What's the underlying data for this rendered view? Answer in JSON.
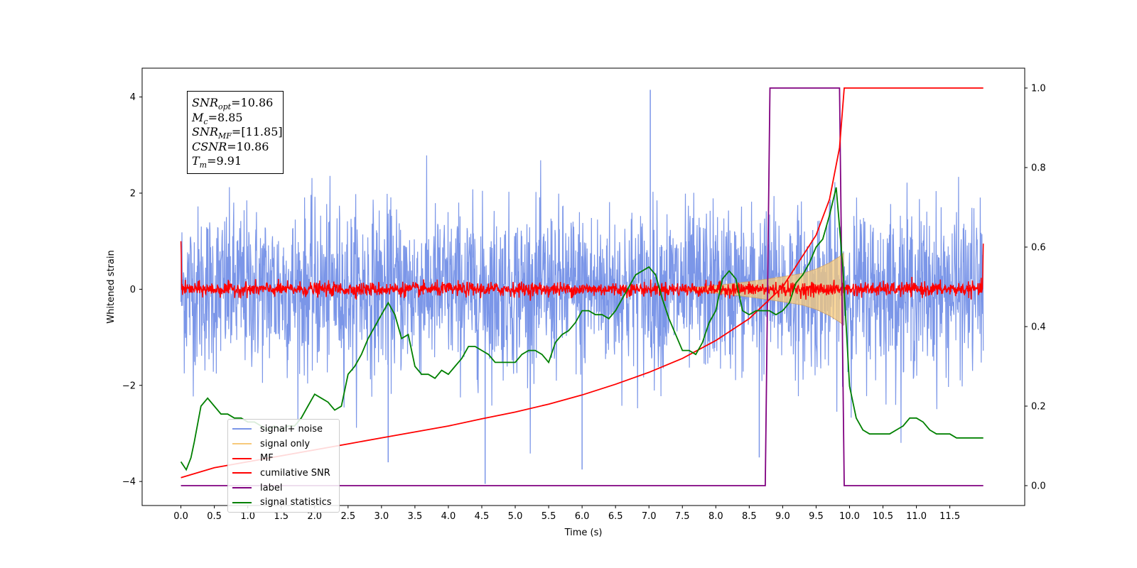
{
  "info_box": {
    "snr_opt": {
      "base": "SNR",
      "sub": "opt",
      "value": "=10.86"
    },
    "mc": {
      "base": "M",
      "sub": "c",
      "value": "=8.85"
    },
    "snr_mf": {
      "base": "SNR",
      "sub": "MF",
      "value": "=[11.85]"
    },
    "csnr": {
      "base": "CSNR",
      "value": "=10.86"
    },
    "tm": {
      "base": "T",
      "sub": "m",
      "value": "=9.91"
    }
  },
  "legend": [
    {
      "label": "signal+ noise",
      "color": "#7b96e8"
    },
    {
      "label": "signal only",
      "color": "#f7c97a"
    },
    {
      "label": "MF",
      "color": "#ff0000"
    },
    {
      "label": "cumilative SNR",
      "color": "#ff0000"
    },
    {
      "label": "label",
      "color": "#800080"
    },
    {
      "label": "signal statistics",
      "color": "#008000"
    }
  ],
  "chart_data": {
    "type": "line",
    "xlabel": "Time (s)",
    "ylabel": "Whitened strain",
    "xlim": [
      -0.58,
      12.62
    ],
    "ylim": [
      -4.5,
      4.6
    ],
    "y2lim": [
      -0.05,
      1.05
    ],
    "xticks": [
      "0.0",
      "0.5",
      "1.0",
      "1.5",
      "2.0",
      "2.5",
      "3.0",
      "3.5",
      "4.0",
      "4.5",
      "5.0",
      "5.5",
      "6.0",
      "6.5",
      "7.0",
      "7.5",
      "8.0",
      "8.5",
      "9.0",
      "9.5",
      "10.0",
      "10.5",
      "11.0",
      "11.5"
    ],
    "yticks": [
      "−4",
      "−2",
      "0",
      "2",
      "4"
    ],
    "y2ticks": [
      "0.0",
      "0.2",
      "0.4",
      "0.6",
      "0.8",
      "1.0"
    ],
    "grid": false,
    "legend_position": "lower-left",
    "series": [
      {
        "name": "signal+ noise",
        "axis": "left",
        "color": "#7b96e8",
        "x_range": [
          0,
          12
        ],
        "amplitude_rms": 0.85,
        "min": -4.05,
        "max": 4.15,
        "spikes": [
          [
            4.55,
            -4.05
          ],
          [
            7.02,
            4.15
          ],
          [
            6.0,
            -3.75
          ],
          [
            3.1,
            -3.6
          ],
          [
            8.65,
            -3.5
          ]
        ]
      },
      {
        "name": "signal only",
        "axis": "left",
        "color": "#f7c97a",
        "envelope": {
          "t": [
            7.5,
            8.0,
            8.5,
            9.0,
            9.3,
            9.5,
            9.7,
            9.85,
            9.91
          ],
          "amp": [
            0.02,
            0.08,
            0.16,
            0.26,
            0.33,
            0.42,
            0.55,
            0.68,
            0.75
          ]
        }
      },
      {
        "name": "MF",
        "axis": "left",
        "color": "#ff0000",
        "x_range": [
          0,
          12
        ],
        "noise_amplitude": 0.12,
        "edge_values": [
          1.0,
          0.95
        ]
      },
      {
        "name": "cumilative SNR",
        "axis": "right",
        "color": "#ff0000",
        "x": [
          0.0,
          0.5,
          1.0,
          1.5,
          2.0,
          2.5,
          3.0,
          3.5,
          4.0,
          4.5,
          5.0,
          5.5,
          6.0,
          6.5,
          7.0,
          7.5,
          8.0,
          8.5,
          9.0,
          9.5,
          9.7,
          9.85,
          9.92,
          10.5,
          11.0,
          11.5,
          12.0
        ],
        "y": [
          0.02,
          0.045,
          0.06,
          0.075,
          0.09,
          0.105,
          0.12,
          0.135,
          0.15,
          0.168,
          0.185,
          0.205,
          0.228,
          0.255,
          0.285,
          0.32,
          0.365,
          0.42,
          0.5,
          0.63,
          0.72,
          0.85,
          1.0,
          1.0,
          1.0,
          1.0,
          1.0
        ]
      },
      {
        "name": "label",
        "axis": "right",
        "color": "#800080",
        "x": [
          0.0,
          8.74,
          8.81,
          9.85,
          9.92,
          12.0
        ],
        "y": [
          0.0,
          0.0,
          1.0,
          1.0,
          0.0,
          0.0
        ]
      },
      {
        "name": "signal statistics",
        "axis": "right",
        "color": "#008000",
        "x": [
          0.0,
          0.08,
          0.15,
          0.2,
          0.3,
          0.4,
          0.5,
          0.6,
          0.7,
          0.8,
          0.9,
          1.0,
          1.1,
          1.2,
          1.3,
          1.4,
          1.5,
          1.6,
          1.7,
          1.8,
          1.9,
          2.0,
          2.1,
          2.2,
          2.3,
          2.4,
          2.5,
          2.6,
          2.7,
          2.8,
          2.9,
          3.0,
          3.1,
          3.2,
          3.3,
          3.4,
          3.5,
          3.6,
          3.7,
          3.8,
          3.9,
          4.0,
          4.1,
          4.2,
          4.3,
          4.4,
          4.5,
          4.6,
          4.7,
          4.8,
          4.9,
          5.0,
          5.1,
          5.2,
          5.3,
          5.4,
          5.5,
          5.6,
          5.7,
          5.8,
          5.9,
          6.0,
          6.1,
          6.2,
          6.3,
          6.4,
          6.5,
          6.6,
          6.7,
          6.8,
          6.9,
          7.0,
          7.1,
          7.2,
          7.3,
          7.4,
          7.5,
          7.6,
          7.7,
          7.8,
          7.9,
          8.0,
          8.1,
          8.2,
          8.3,
          8.4,
          8.5,
          8.6,
          8.7,
          8.8,
          8.9,
          9.0,
          9.1,
          9.2,
          9.3,
          9.4,
          9.5,
          9.6,
          9.7,
          9.8,
          9.9,
          10.0,
          10.1,
          10.2,
          10.3,
          10.4,
          10.5,
          10.6,
          10.7,
          10.8,
          10.9,
          11.0,
          11.1,
          11.2,
          11.3,
          11.4,
          11.5,
          11.6,
          11.7,
          11.8,
          11.9,
          12.0
        ],
        "y": [
          0.06,
          0.04,
          0.07,
          0.11,
          0.2,
          0.22,
          0.2,
          0.18,
          0.18,
          0.17,
          0.17,
          0.16,
          0.16,
          0.15,
          0.14,
          0.15,
          0.14,
          0.15,
          0.15,
          0.17,
          0.2,
          0.23,
          0.22,
          0.21,
          0.19,
          0.2,
          0.28,
          0.3,
          0.33,
          0.37,
          0.4,
          0.43,
          0.46,
          0.43,
          0.37,
          0.38,
          0.3,
          0.28,
          0.28,
          0.27,
          0.29,
          0.28,
          0.3,
          0.32,
          0.35,
          0.35,
          0.34,
          0.33,
          0.31,
          0.31,
          0.31,
          0.31,
          0.33,
          0.34,
          0.34,
          0.33,
          0.31,
          0.36,
          0.38,
          0.39,
          0.41,
          0.44,
          0.44,
          0.43,
          0.43,
          0.42,
          0.44,
          0.47,
          0.5,
          0.53,
          0.54,
          0.55,
          0.53,
          0.47,
          0.42,
          0.38,
          0.34,
          0.34,
          0.33,
          0.36,
          0.41,
          0.44,
          0.52,
          0.54,
          0.52,
          0.44,
          0.43,
          0.44,
          0.44,
          0.44,
          0.43,
          0.44,
          0.46,
          0.51,
          0.53,
          0.56,
          0.6,
          0.62,
          0.68,
          0.75,
          0.55,
          0.25,
          0.17,
          0.14,
          0.13,
          0.13,
          0.13,
          0.13,
          0.14,
          0.15,
          0.17,
          0.17,
          0.16,
          0.14,
          0.13,
          0.13,
          0.13,
          0.12,
          0.12,
          0.12,
          0.12,
          0.12
        ]
      }
    ]
  }
}
